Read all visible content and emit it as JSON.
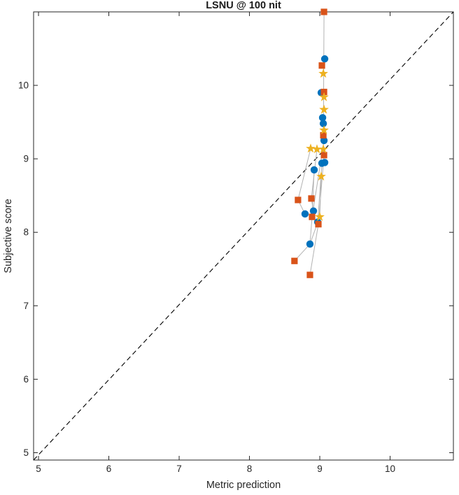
{
  "title": "LSNU @ 100 nit",
  "colors": {
    "background": "#ffffff",
    "axis": "#262626",
    "text": "#262626",
    "identity_line": "#000000",
    "link_line": "#b2b2b2",
    "series_blue": "#0072BD",
    "series_orange": "#D95319",
    "series_yellow": "#EDB120"
  },
  "chart_data": {
    "type": "scatter",
    "title": "LSNU @ 100 nit",
    "xlabel": "Metric prediction",
    "ylabel": "Subjective score",
    "xlim": [
      4.93,
      10.9
    ],
    "ylim": [
      4.9,
      11.0
    ],
    "xticks": [
      5,
      6,
      7,
      8,
      9,
      10
    ],
    "yticks": [
      5,
      6,
      7,
      8,
      9,
      10
    ],
    "grid": false,
    "legend": "none",
    "box": true,
    "identity_line": {
      "style": "dashed",
      "color": "#000000",
      "from": [
        4.93,
        4.9
      ],
      "to": [
        10.9,
        11.0
      ]
    },
    "series": [
      {
        "name": "series-circle",
        "marker": "circle",
        "color": "#0072BD",
        "points": [
          [
            9.07,
            10.36
          ],
          [
            9.02,
            9.9
          ],
          [
            9.04,
            9.56
          ],
          [
            9.05,
            9.48
          ],
          [
            9.06,
            9.25
          ],
          [
            9.03,
            8.94
          ],
          [
            9.07,
            8.95
          ],
          [
            8.92,
            8.85
          ],
          [
            8.79,
            8.25
          ],
          [
            8.91,
            8.29
          ],
          [
            8.97,
            8.14
          ],
          [
            8.86,
            7.84
          ]
        ]
      },
      {
        "name": "series-square",
        "marker": "square",
        "color": "#D95319",
        "points": [
          [
            9.06,
            11.0
          ],
          [
            9.03,
            10.27
          ],
          [
            9.06,
            9.91
          ],
          [
            9.05,
            9.32
          ],
          [
            9.06,
            9.05
          ],
          [
            8.69,
            8.44
          ],
          [
            8.88,
            8.46
          ],
          [
            8.89,
            8.21
          ],
          [
            8.98,
            8.11
          ],
          [
            8.64,
            7.61
          ],
          [
            8.86,
            7.42
          ]
        ]
      },
      {
        "name": "series-star",
        "marker": "star",
        "color": "#EDB120",
        "points": [
          [
            9.05,
            10.16
          ],
          [
            9.06,
            9.84
          ],
          [
            9.06,
            9.67
          ],
          [
            9.06,
            9.39
          ],
          [
            8.87,
            9.14
          ],
          [
            8.96,
            9.13
          ],
          [
            9.05,
            9.13
          ],
          [
            9.02,
            8.76
          ],
          [
            9.0,
            8.21
          ]
        ]
      }
    ],
    "links": [
      [
        [
          9.06,
          11.0
        ],
        [
          9.05,
          9.13
        ]
      ],
      [
        [
          9.05,
          9.13
        ],
        [
          9.06,
          9.05
        ],
        [
          8.98,
          8.11
        ],
        [
          8.86,
          7.42
        ]
      ],
      [
        [
          9.06,
          9.25
        ],
        [
          8.89,
          8.21
        ],
        [
          8.86,
          7.84
        ],
        [
          8.64,
          7.61
        ]
      ],
      [
        [
          8.87,
          9.14
        ],
        [
          8.69,
          8.44
        ],
        [
          8.79,
          8.25
        ]
      ],
      [
        [
          8.96,
          9.13
        ],
        [
          8.88,
          8.46
        ],
        [
          8.91,
          8.29
        ]
      ],
      [
        [
          8.92,
          8.85
        ],
        [
          8.89,
          8.21
        ]
      ],
      [
        [
          9.02,
          8.76
        ],
        [
          9.0,
          8.21
        ],
        [
          8.86,
          7.84
        ]
      ],
      [
        [
          9.03,
          8.94
        ],
        [
          8.97,
          8.14
        ]
      ]
    ]
  }
}
